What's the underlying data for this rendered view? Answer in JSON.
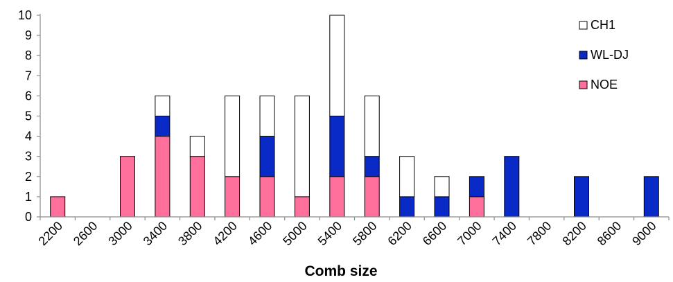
{
  "chart_data": {
    "type": "bar",
    "stacked": true,
    "title": "",
    "xlabel": "Comb size",
    "ylabel": "",
    "ylim": [
      0,
      10
    ],
    "yticks": [
      "0",
      "1",
      "2",
      "3",
      "4",
      "5",
      "6",
      "7",
      "8",
      "9",
      "10"
    ],
    "grid": false,
    "legend_position": "top-right",
    "categories": [
      "2200",
      "2600",
      "3000",
      "3400",
      "3800",
      "4200",
      "4600",
      "5000",
      "5400",
      "5800",
      "6200",
      "6600",
      "7000",
      "7400",
      "7800",
      "8200",
      "8600",
      "9000"
    ],
    "series": [
      {
        "name": "NOE",
        "color": "#ff6f9c",
        "values": [
          1,
          0,
          3,
          4,
          3,
          2,
          2,
          1,
          2,
          2,
          0,
          0,
          1,
          0,
          0,
          0,
          0,
          0
        ]
      },
      {
        "name": "WL-DJ",
        "color": "#0a2ac8",
        "values": [
          0,
          0,
          0,
          1,
          0,
          0,
          2,
          0,
          3,
          1,
          1,
          1,
          1,
          3,
          0,
          2,
          0,
          2
        ]
      },
      {
        "name": "CH1",
        "color": "#ffffff",
        "values": [
          0,
          0,
          0,
          1,
          1,
          4,
          2,
          5,
          5,
          3,
          2,
          1,
          0,
          0,
          0,
          0,
          0,
          0
        ]
      }
    ],
    "legend_order": [
      "CH1",
      "WL-DJ",
      "NOE"
    ]
  }
}
